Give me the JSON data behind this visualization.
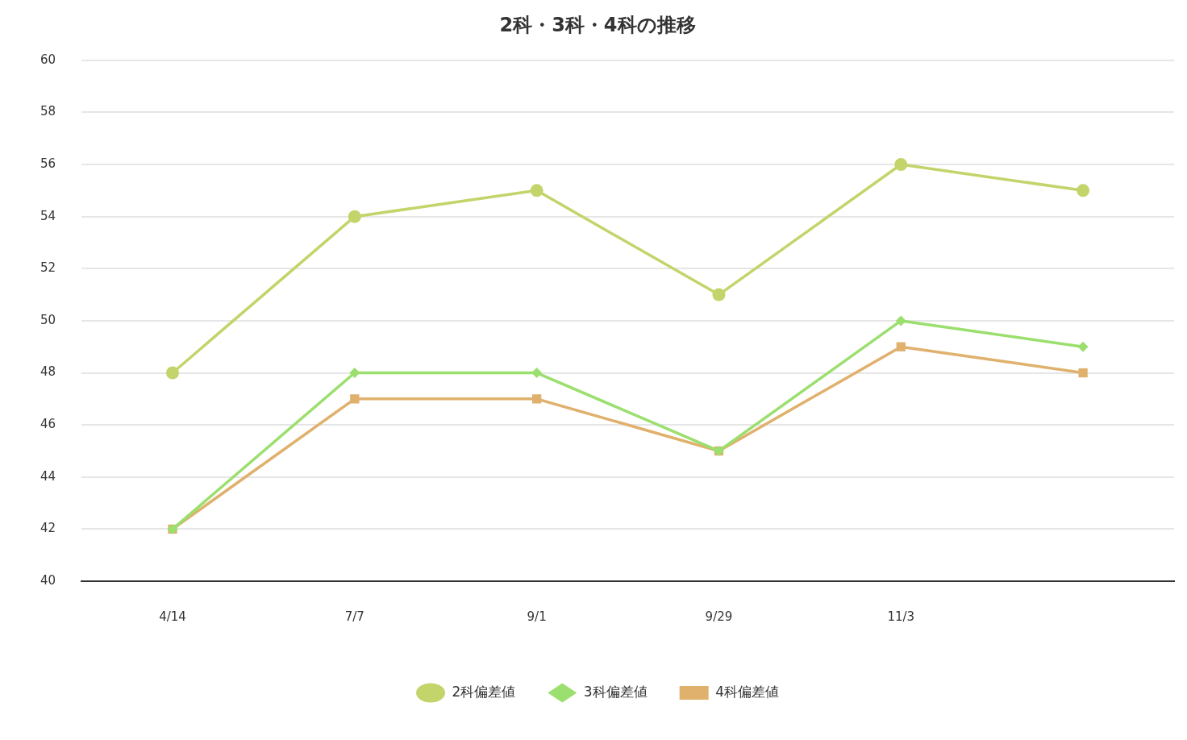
{
  "chart_data": {
    "type": "line",
    "title": "2科・3科・4科の推移",
    "categories": [
      "4/14",
      "7/7",
      "9/1",
      "9/29",
      "11/3",
      null
    ],
    "series": [
      {
        "name": "2科偏差値",
        "color": "#c3d46a",
        "marker": "circle",
        "values": [
          48,
          54,
          55,
          51,
          56,
          55
        ]
      },
      {
        "name": "3科偏差値",
        "color": "#9bdf6e",
        "marker": "diamond",
        "values": [
          42,
          48,
          48,
          45,
          50,
          49
        ]
      },
      {
        "name": "4科偏差値",
        "color": "#e0b06d",
        "marker": "square",
        "values": [
          42,
          47,
          47,
          45,
          49,
          48
        ]
      }
    ],
    "ylim": [
      40,
      60
    ],
    "yticks": [
      40,
      42,
      44,
      46,
      48,
      50,
      52,
      54,
      56,
      58,
      60
    ],
    "grid": "y",
    "legend": "bottom",
    "line_style": "solid"
  }
}
